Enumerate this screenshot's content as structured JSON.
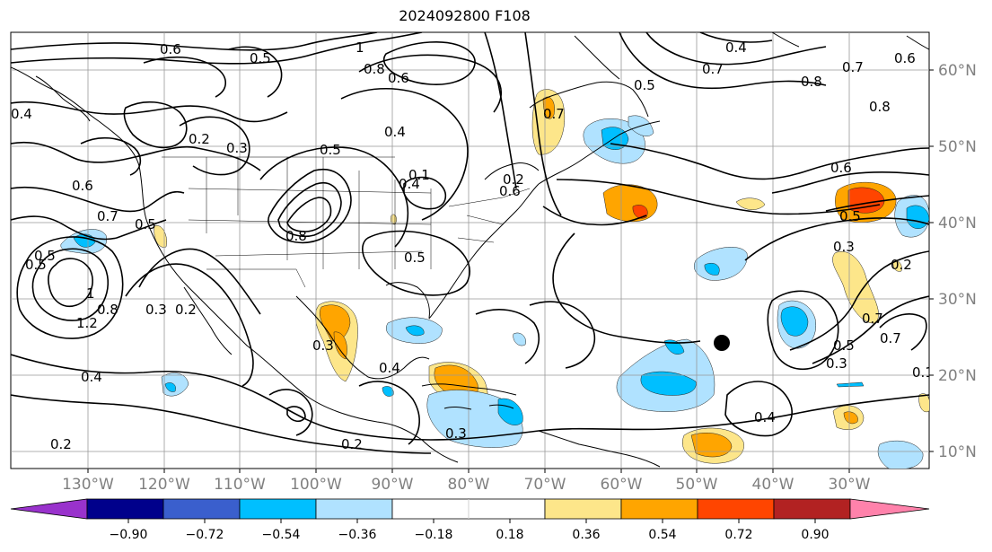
{
  "title": "2024092800 F108",
  "map": {
    "lon_range": [
      -135,
      -15
    ],
    "lat_range": [
      8,
      65
    ],
    "lon_ticks": [
      "130°W",
      "120°W",
      "110°W",
      "100°W",
      "90°W",
      "80°W",
      "70°W",
      "60°W",
      "50°W",
      "40°W",
      "30°W"
    ],
    "lat_ticks": [
      "60°N",
      "50°N",
      "40°N",
      "30°N",
      "20°N",
      "10°N"
    ],
    "contour_labels": [
      "0.6",
      "0.5",
      "1",
      "0.8",
      "0.6",
      "0.5",
      "0.4",
      "0.4",
      "0.6",
      "0.7",
      "0.8",
      "0.8",
      "0.7",
      "0.6",
      "0.5",
      "0.4",
      "0.2",
      "0.3",
      "0.5",
      "0.6",
      "0.7",
      "0.8",
      "0.3",
      "0.5",
      "0.4",
      "0.6",
      "0.5",
      "0.7",
      "0.3",
      "0.2",
      "0.5",
      "0.8",
      "1",
      "1.2",
      "0.3",
      "0.2",
      "0.4",
      "0.2",
      "0.3",
      "0.4",
      "0.5",
      "0.7",
      "0.2",
      "0.1",
      "0.3",
      "0.4",
      "0.1",
      "0.2",
      "0.5",
      "0.7"
    ],
    "marker": {
      "type": "storm-center-dot"
    }
  },
  "colorbar": {
    "ticks": [
      "−0.90",
      "−0.72",
      "−0.54",
      "−0.36",
      "−0.18",
      "0.18",
      "0.36",
      "0.54",
      "0.72",
      "0.90"
    ],
    "colors": [
      "#9932cc",
      "#00008b",
      "#3a5fcd",
      "#00bfff",
      "#b0e2ff",
      "#ffffff",
      "#fde68a",
      "#ffa500",
      "#ff4500",
      "#b22222",
      "#ff82ab"
    ]
  }
}
